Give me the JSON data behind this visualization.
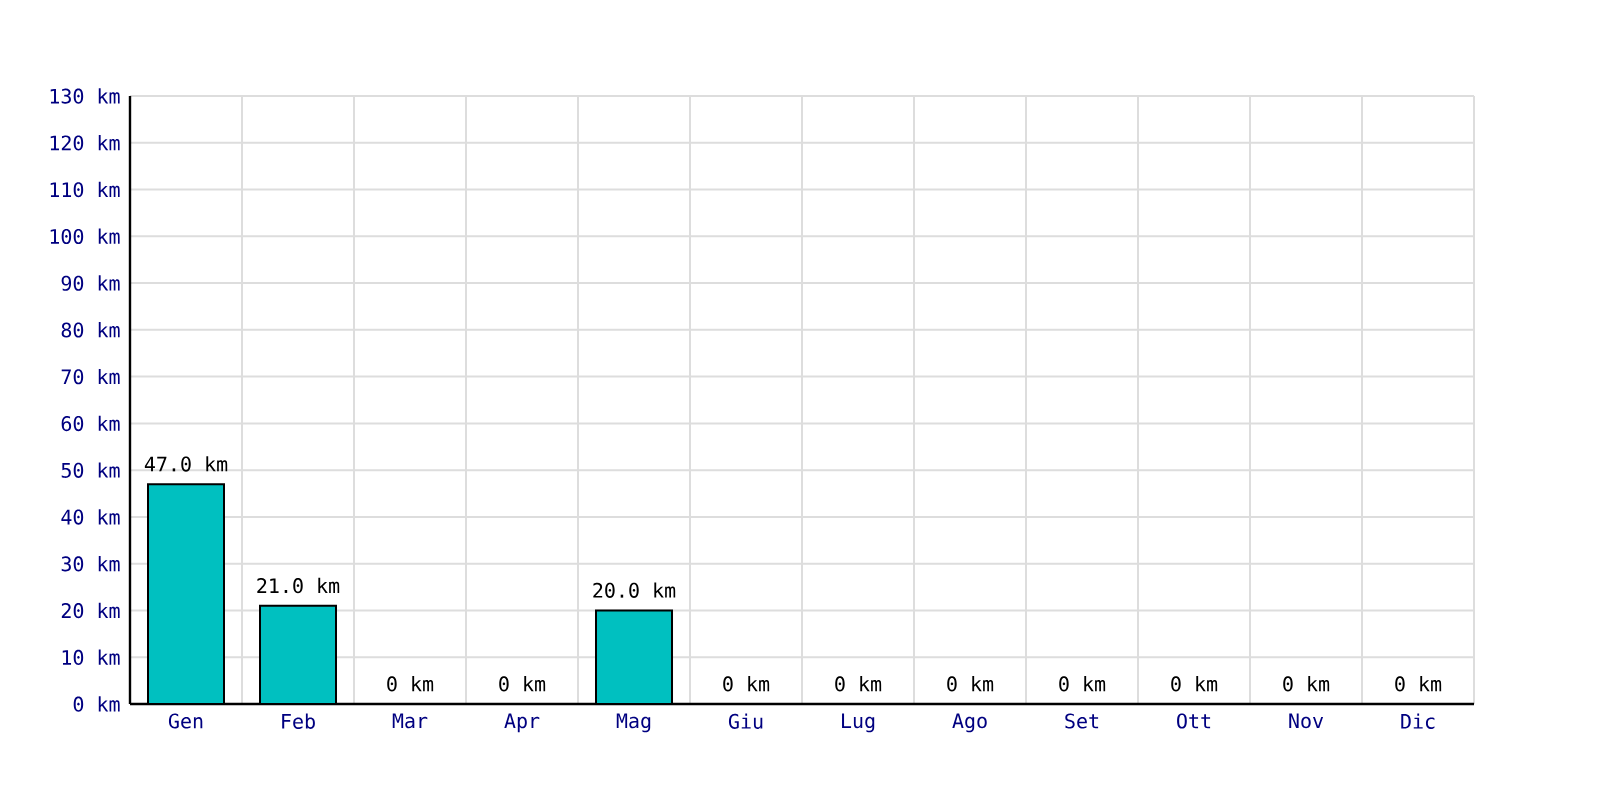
{
  "chart_data": {
    "type": "bar",
    "categories": [
      "Gen",
      "Feb",
      "Mar",
      "Apr",
      "Mag",
      "Giu",
      "Lug",
      "Ago",
      "Set",
      "Ott",
      "Nov",
      "Dic"
    ],
    "values": [
      47,
      21,
      0,
      0,
      20,
      0,
      0,
      0,
      0,
      0,
      0,
      0
    ],
    "value_labels": [
      "47.0 km",
      "21.0 km",
      "0 km",
      "0 km",
      "20.0 km",
      "0 km",
      "0 km",
      "0 km",
      "0 km",
      "0 km",
      "0 km",
      "0 km"
    ],
    "color": "#00c0c0",
    "ylim": [
      0,
      130
    ],
    "yticks": [
      {
        "value": 0,
        "label": "0 km"
      },
      {
        "value": 10,
        "label": "10 km"
      },
      {
        "value": 20,
        "label": "20 km"
      },
      {
        "value": 30,
        "label": "30 km"
      },
      {
        "value": 40,
        "label": "40 km"
      },
      {
        "value": 50,
        "label": "50 km"
      },
      {
        "value": 60,
        "label": "60 km"
      },
      {
        "value": 70,
        "label": "70 km"
      },
      {
        "value": 80,
        "label": "80 km"
      },
      {
        "value": 90,
        "label": "90 km"
      },
      {
        "value": 100,
        "label": "100 km"
      },
      {
        "value": 110,
        "label": "110 km"
      },
      {
        "value": 120,
        "label": "120 km"
      },
      {
        "value": 130,
        "label": "130 km"
      }
    ],
    "grid": true
  }
}
